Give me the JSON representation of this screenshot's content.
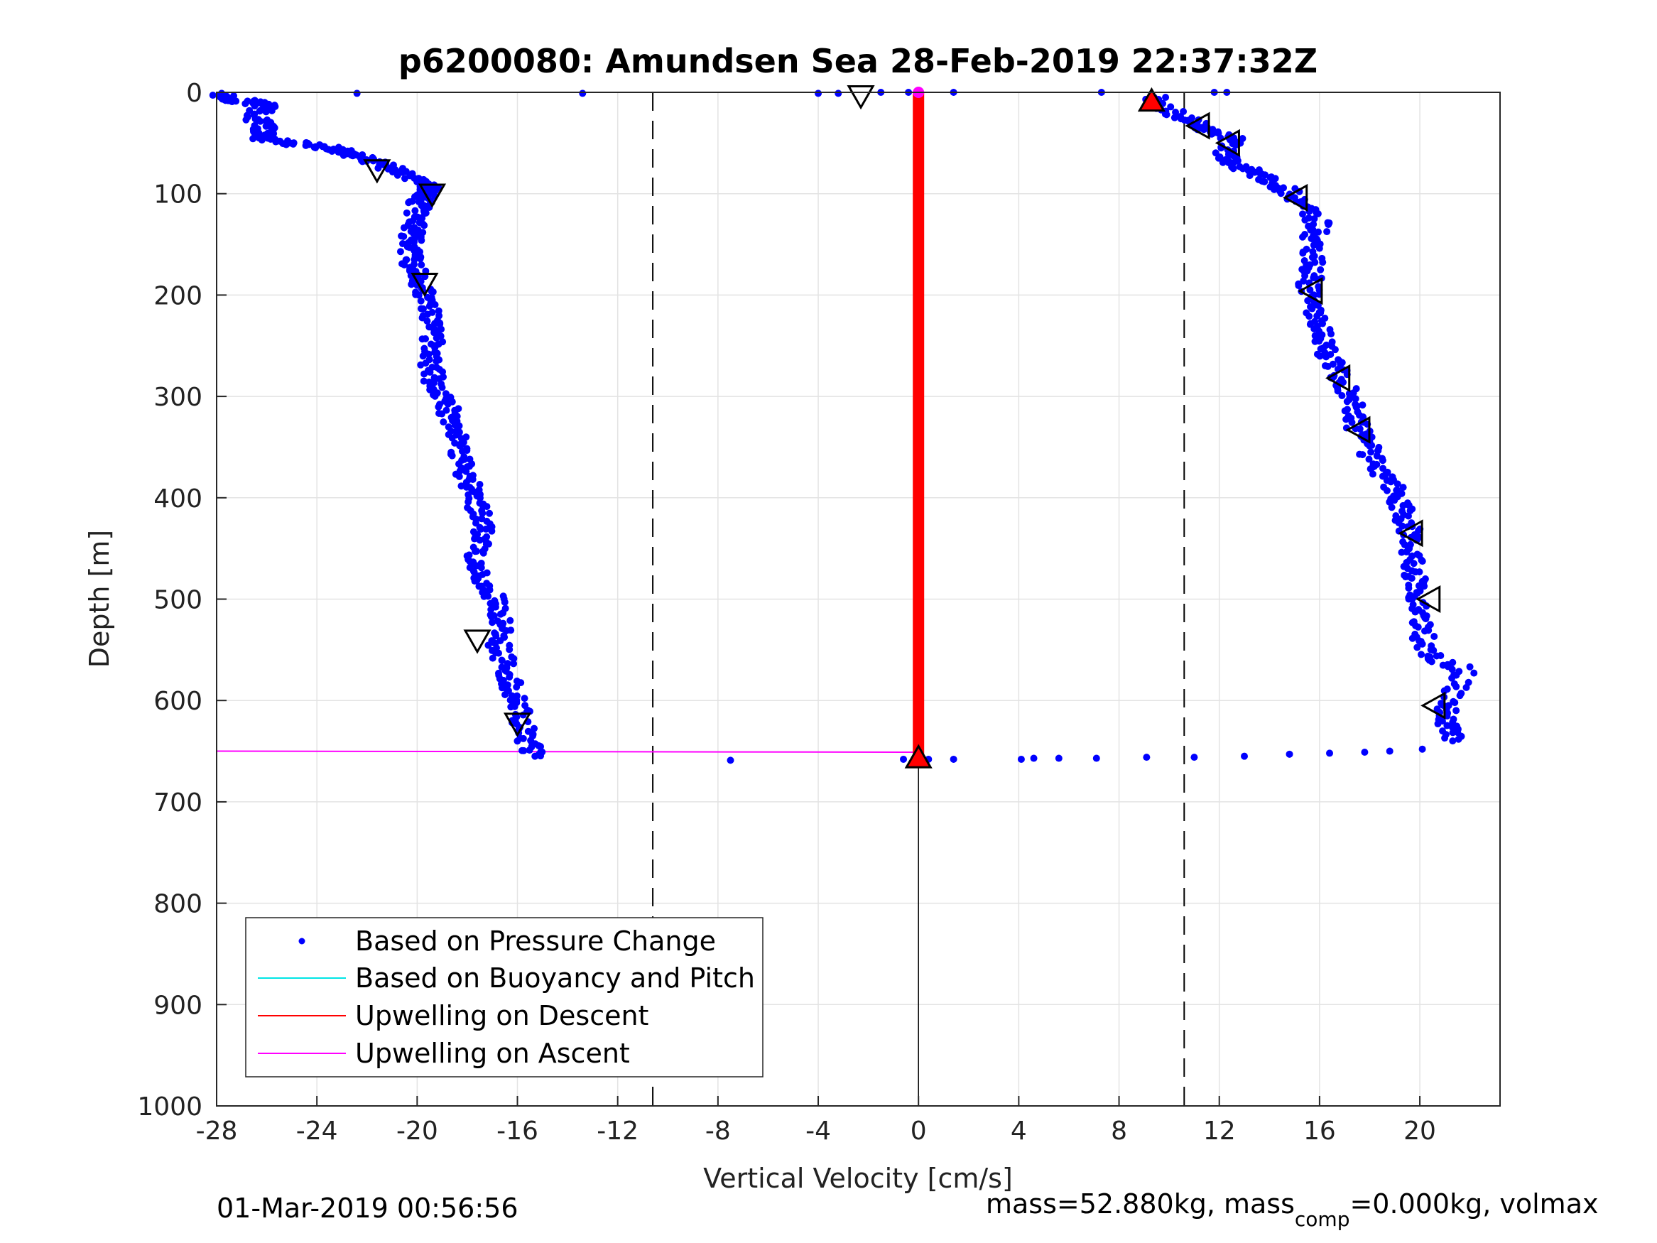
{
  "chart_data": {
    "type": "scatter",
    "title": "p6200080: Amundsen Sea 28-Feb-2019 22:37:32Z",
    "xlabel": "Vertical Velocity [cm/s]",
    "ylabel": "Depth [m]",
    "xlim": [
      -28,
      23.2
    ],
    "ylim": [
      0,
      1000
    ],
    "y_reversed": true,
    "grid": true,
    "x_ticks": [
      -28,
      -24,
      -20,
      -16,
      -12,
      -8,
      -4,
      0,
      4,
      8,
      12,
      16,
      20
    ],
    "y_ticks": [
      0,
      100,
      200,
      300,
      400,
      500,
      600,
      700,
      800,
      900,
      1000
    ],
    "dashed_vlines": [
      -10.6,
      10.6
    ],
    "legend": {
      "position": "bottom-left",
      "entries": [
        {
          "label": "Based on Pressure Change",
          "color": "#0000ff",
          "marker": "dot"
        },
        {
          "label": "Based on Buoyancy and Pitch",
          "color": "#00e5e5",
          "marker": "line"
        },
        {
          "label": "Upwelling on Descent",
          "color": "#ff0000",
          "marker": "line"
        },
        {
          "label": "Upwelling on Ascent",
          "color": "#ff00ff",
          "marker": "line"
        }
      ]
    },
    "series": [
      {
        "name": "Based on Pressure Change",
        "color": "#0000ff",
        "descent_profile": [
          [
            -27.7,
            3
          ],
          [
            -27.3,
            8
          ],
          [
            -26.0,
            12
          ],
          [
            -26.5,
            25
          ],
          [
            -26.0,
            35
          ],
          [
            -26.3,
            45
          ],
          [
            -25.0,
            50
          ],
          [
            -23.5,
            55
          ],
          [
            -22.5,
            62
          ],
          [
            -21.5,
            70
          ],
          [
            -20.5,
            80
          ],
          [
            -19.5,
            92
          ],
          [
            -19.6,
            100
          ],
          [
            -19.9,
            110
          ],
          [
            -20.1,
            125
          ],
          [
            -20.2,
            140
          ],
          [
            -20.3,
            155
          ],
          [
            -20.2,
            170
          ],
          [
            -19.9,
            185
          ],
          [
            -19.7,
            200
          ],
          [
            -19.5,
            220
          ],
          [
            -19.4,
            240
          ],
          [
            -19.5,
            260
          ],
          [
            -19.4,
            280
          ],
          [
            -19.0,
            300
          ],
          [
            -18.6,
            320
          ],
          [
            -18.4,
            340
          ],
          [
            -18.2,
            360
          ],
          [
            -18.0,
            380
          ],
          [
            -17.7,
            400
          ],
          [
            -17.5,
            420
          ],
          [
            -17.4,
            440
          ],
          [
            -17.6,
            460
          ],
          [
            -17.4,
            480
          ],
          [
            -16.9,
            500
          ],
          [
            -16.6,
            520
          ],
          [
            -16.8,
            540
          ],
          [
            -16.5,
            560
          ],
          [
            -16.3,
            580
          ],
          [
            -16.0,
            600
          ],
          [
            -15.9,
            620
          ],
          [
            -15.6,
            640
          ],
          [
            -15.3,
            655
          ]
        ],
        "ascent_profile": [
          [
            21.4,
            640
          ],
          [
            21.0,
            620
          ],
          [
            21.2,
            600
          ],
          [
            21.8,
            570
          ],
          [
            20.2,
            555
          ],
          [
            20.1,
            530
          ],
          [
            20.0,
            510
          ],
          [
            19.8,
            490
          ],
          [
            19.8,
            470
          ],
          [
            19.5,
            450
          ],
          [
            19.6,
            430
          ],
          [
            19.3,
            410
          ],
          [
            18.9,
            390
          ],
          [
            18.3,
            370
          ],
          [
            17.9,
            350
          ],
          [
            17.5,
            330
          ],
          [
            17.3,
            310
          ],
          [
            17.0,
            290
          ],
          [
            16.6,
            270
          ],
          [
            16.2,
            250
          ],
          [
            15.9,
            230
          ],
          [
            15.8,
            210
          ],
          [
            15.6,
            190
          ],
          [
            15.8,
            170
          ],
          [
            15.6,
            150
          ],
          [
            16.0,
            130
          ],
          [
            15.2,
            110
          ],
          [
            14.6,
            95
          ],
          [
            13.5,
            80
          ],
          [
            12.6,
            70
          ],
          [
            12.2,
            60
          ],
          [
            12.5,
            45
          ],
          [
            11.3,
            35
          ],
          [
            10.5,
            25
          ],
          [
            9.6,
            12
          ],
          [
            9.4,
            5
          ]
        ],
        "surface_points": [
          [
            -27.8,
            1
          ],
          [
            -22.4,
            1
          ],
          [
            -13.4,
            1
          ],
          [
            -4.0,
            1
          ],
          [
            -3.2,
            1
          ],
          [
            -1.5,
            0
          ],
          [
            -0.4,
            0
          ],
          [
            1.4,
            0
          ],
          [
            7.3,
            0
          ],
          [
            11.8,
            0
          ],
          [
            12.3,
            0
          ]
        ],
        "bottom_points": [
          [
            -7.5,
            659
          ],
          [
            -0.6,
            658
          ],
          [
            0.4,
            658
          ],
          [
            1.4,
            658
          ],
          [
            4.1,
            658
          ],
          [
            4.6,
            657
          ],
          [
            5.6,
            657
          ],
          [
            7.1,
            657
          ],
          [
            9.1,
            656
          ],
          [
            11.0,
            656
          ],
          [
            13.0,
            655
          ],
          [
            14.8,
            653
          ],
          [
            16.4,
            652
          ],
          [
            17.8,
            651
          ],
          [
            18.8,
            650
          ],
          [
            20.1,
            648
          ]
        ]
      },
      {
        "name": "Upwelling on Descent",
        "color": "#ff0000",
        "x": [
          0,
          0
        ],
        "y": [
          0,
          655
        ]
      },
      {
        "name": "Upwelling on Ascent",
        "color": "#ff00ff",
        "lines": [
          {
            "x": [
              -28,
              0
            ],
            "y": [
              0,
              0
            ]
          },
          {
            "x": [
              -28,
              0
            ],
            "y": [
              650,
              651
            ]
          }
        ]
      }
    ],
    "triangle_markers": {
      "descent": [
        [
          -2.3,
          3
        ],
        [
          -21.6,
          76
        ],
        [
          -19.4,
          100
        ],
        [
          -19.7,
          188
        ],
        [
          -17.6,
          540
        ],
        [
          -16.0,
          622
        ]
      ],
      "ascent": [
        [
          11.2,
          33
        ],
        [
          12.4,
          50
        ],
        [
          15.1,
          104
        ],
        [
          15.7,
          196
        ],
        [
          16.8,
          282
        ],
        [
          17.6,
          333
        ],
        [
          19.7,
          435
        ],
        [
          20.4,
          500
        ],
        [
          20.6,
          605
        ]
      ],
      "red_up": [
        [
          9.3,
          9
        ],
        [
          0.0,
          657
        ]
      ],
      "magenta_point": [
        [
          0.0,
          0
        ]
      ]
    }
  },
  "footer": {
    "left": "01-Mar-2019 00:56:56",
    "right_pre": "mass=52.880kg, mass",
    "right_sub": "comp",
    "right_post": "=0.000kg, volmax"
  }
}
